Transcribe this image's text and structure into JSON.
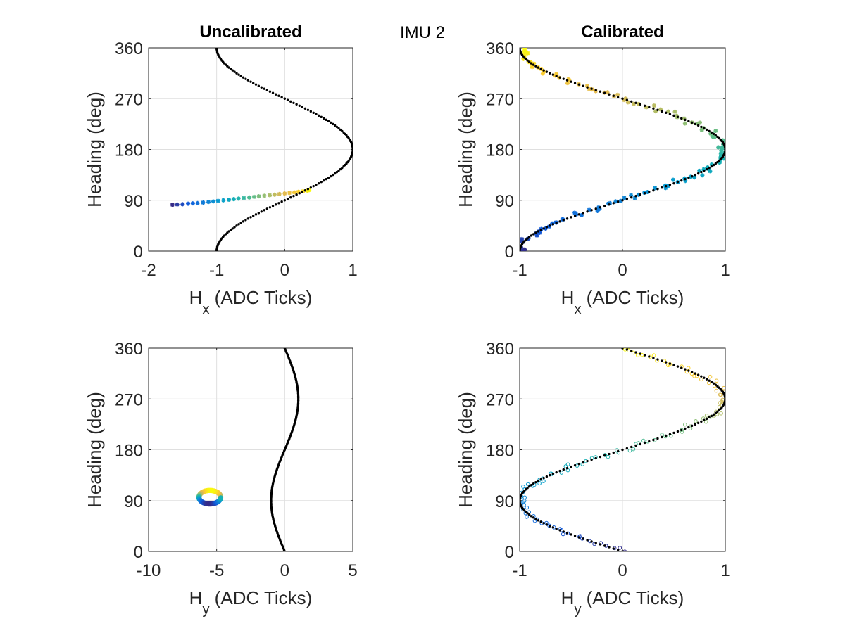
{
  "figure": {
    "suptitle": "IMU 2"
  },
  "chart_data": [
    {
      "type": "scatter",
      "title": "Uncalibrated",
      "xlabel": "H",
      "xlabel_sub": "x",
      "xlabel_tail": " (ADC Ticks)",
      "ylabel": "Heading (deg)",
      "xlim": [
        -2,
        1
      ],
      "ylim": [
        0,
        360
      ],
      "xticks": [
        "-2",
        "-1",
        "0",
        "1"
      ],
      "xtick_values": [
        -2,
        -1,
        0,
        1
      ],
      "yticks": [
        "0",
        "90",
        "180",
        "270",
        "360"
      ],
      "ytick_values": [
        0,
        90,
        180,
        270,
        360
      ],
      "grid": true,
      "reference": {
        "kind": "neg_cos",
        "amplitude": 1,
        "center": 0,
        "marker": "dot",
        "color": "#000000"
      },
      "measured": {
        "marker": "star",
        "colormap": "parula",
        "points": [
          [
            -1.65,
            82
          ],
          [
            -1.58,
            82.5
          ],
          [
            -1.5,
            83
          ],
          [
            -1.42,
            84
          ],
          [
            -1.35,
            84.5
          ],
          [
            -1.28,
            85
          ],
          [
            -1.2,
            86
          ],
          [
            -1.12,
            87
          ],
          [
            -1.05,
            88
          ],
          [
            -0.98,
            89
          ],
          [
            -0.9,
            90
          ],
          [
            -0.82,
            91
          ],
          [
            -0.75,
            92
          ],
          [
            -0.68,
            93
          ],
          [
            -0.6,
            94
          ],
          [
            -0.52,
            95
          ],
          [
            -0.45,
            96
          ],
          [
            -0.38,
            97
          ],
          [
            -0.3,
            98
          ],
          [
            -0.22,
            99
          ],
          [
            -0.15,
            100
          ],
          [
            -0.08,
            101
          ],
          [
            0.0,
            102
          ],
          [
            0.07,
            103
          ],
          [
            0.14,
            104
          ],
          [
            0.2,
            105
          ],
          [
            0.27,
            106
          ],
          [
            0.33,
            107
          ],
          [
            0.36,
            108
          ]
        ]
      }
    },
    {
      "type": "scatter",
      "title": "Calibrated",
      "xlabel": "H",
      "xlabel_sub": "x",
      "xlabel_tail": " (ADC Ticks)",
      "ylabel": "Heading (deg)",
      "xlim": [
        -1,
        1
      ],
      "ylim": [
        0,
        360
      ],
      "xticks": [
        "-1",
        "0",
        "1"
      ],
      "xtick_values": [
        -1,
        0,
        1
      ],
      "yticks": [
        "0",
        "90",
        "180",
        "270",
        "360"
      ],
      "ytick_values": [
        0,
        90,
        180,
        270,
        360
      ],
      "grid": true,
      "reference": {
        "kind": "neg_cos",
        "amplitude": 1,
        "center": 0,
        "marker": "dot",
        "color": "#000000"
      },
      "measured": {
        "marker": "star",
        "colormap": "parula",
        "shape": "neg_cos",
        "jitter": 0.06,
        "count": 130
      }
    },
    {
      "type": "scatter",
      "title": "",
      "xlabel": "H",
      "xlabel_sub": "y",
      "xlabel_tail": " (ADC Ticks)",
      "ylabel": "Heading (deg)",
      "xlim": [
        -10,
        5
      ],
      "ylim": [
        0,
        360
      ],
      "xticks": [
        "-10",
        "-5",
        "0",
        "5"
      ],
      "xtick_values": [
        -10,
        -5,
        0,
        5
      ],
      "yticks": [
        "0",
        "90",
        "180",
        "270",
        "360"
      ],
      "ytick_values": [
        0,
        90,
        180,
        270,
        360
      ],
      "grid": true,
      "reference": {
        "kind": "neg_sin",
        "amplitude": 1,
        "center": 0,
        "marker": "dot",
        "color": "#000000"
      },
      "measured": {
        "marker": "circle",
        "colormap": "parula",
        "shape": "ellipse",
        "center": [
          -5.5,
          96
        ],
        "radius_x": 0.8,
        "radius_y": 12,
        "count": 60
      }
    },
    {
      "type": "scatter",
      "title": "",
      "xlabel": "H",
      "xlabel_sub": "y",
      "xlabel_tail": " (ADC Ticks)",
      "ylabel": "Heading (deg)",
      "xlim": [
        -1,
        1
      ],
      "ylim": [
        0,
        360
      ],
      "xticks": [
        "-1",
        "0",
        "1"
      ],
      "xtick_values": [
        -1,
        0,
        1
      ],
      "yticks": [
        "0",
        "90",
        "180",
        "270",
        "360"
      ],
      "ytick_values": [
        0,
        90,
        180,
        270,
        360
      ],
      "grid": true,
      "reference": {
        "kind": "neg_sin",
        "amplitude": 1,
        "center": 0,
        "marker": "dot",
        "color": "#000000"
      },
      "measured": {
        "marker": "circle",
        "colormap": "parula",
        "shape": "neg_sin",
        "jitter": 0.05,
        "count": 120
      }
    }
  ]
}
